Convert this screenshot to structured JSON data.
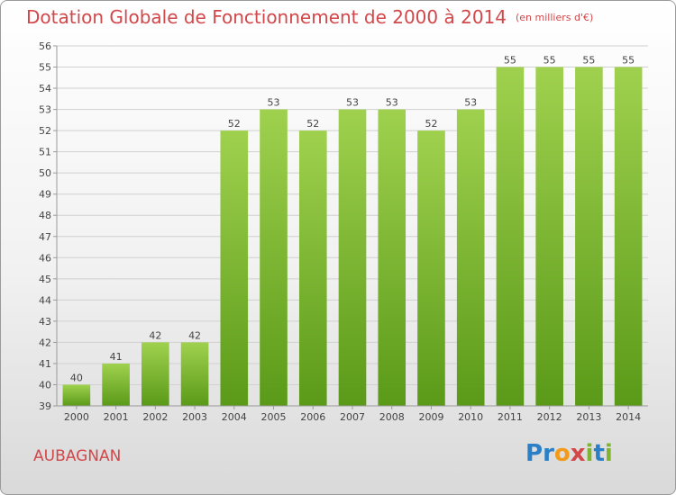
{
  "title": "Dotation Globale de Fonctionnement de 2000 à 2014",
  "subtitle": "(en milliers d'€)",
  "commune": "AUBAGNAN",
  "logo": {
    "text": "Proxiti",
    "letters": [
      {
        "ch": "P",
        "color": "#2a7fc7"
      },
      {
        "ch": "r",
        "color": "#2a7fc7"
      },
      {
        "ch": "o",
        "color": "#f29a1a"
      },
      {
        "ch": "x",
        "color": "#d2474a"
      },
      {
        "ch": "i",
        "color": "#7fb431"
      },
      {
        "ch": "t",
        "color": "#2a7fc7"
      },
      {
        "ch": "i",
        "color": "#7fb431"
      }
    ]
  },
  "colors": {
    "accent": "#d2474a",
    "bar_top": "#9fd14e",
    "bar_bottom": "#5a9a18",
    "grid": "#d0d0d0",
    "axis": "#9a9a9a"
  },
  "chart_data": {
    "type": "bar",
    "title": "Dotation Globale de Fonctionnement de 2000 à 2014",
    "subtitle": "(en milliers d'€)",
    "xlabel": "",
    "ylabel": "",
    "categories": [
      "2000",
      "2001",
      "2002",
      "2003",
      "2004",
      "2005",
      "2006",
      "2007",
      "2008",
      "2009",
      "2010",
      "2011",
      "2012",
      "2013",
      "2014"
    ],
    "values": [
      40,
      41,
      42,
      42,
      52,
      53,
      52,
      53,
      53,
      52,
      53,
      55,
      55,
      55,
      55
    ],
    "ylim": [
      39,
      56
    ],
    "yticks": [
      39,
      40,
      41,
      42,
      43,
      44,
      45,
      46,
      47,
      48,
      49,
      50,
      51,
      52,
      53,
      54,
      55,
      56
    ],
    "grid": true,
    "legend": "none"
  }
}
